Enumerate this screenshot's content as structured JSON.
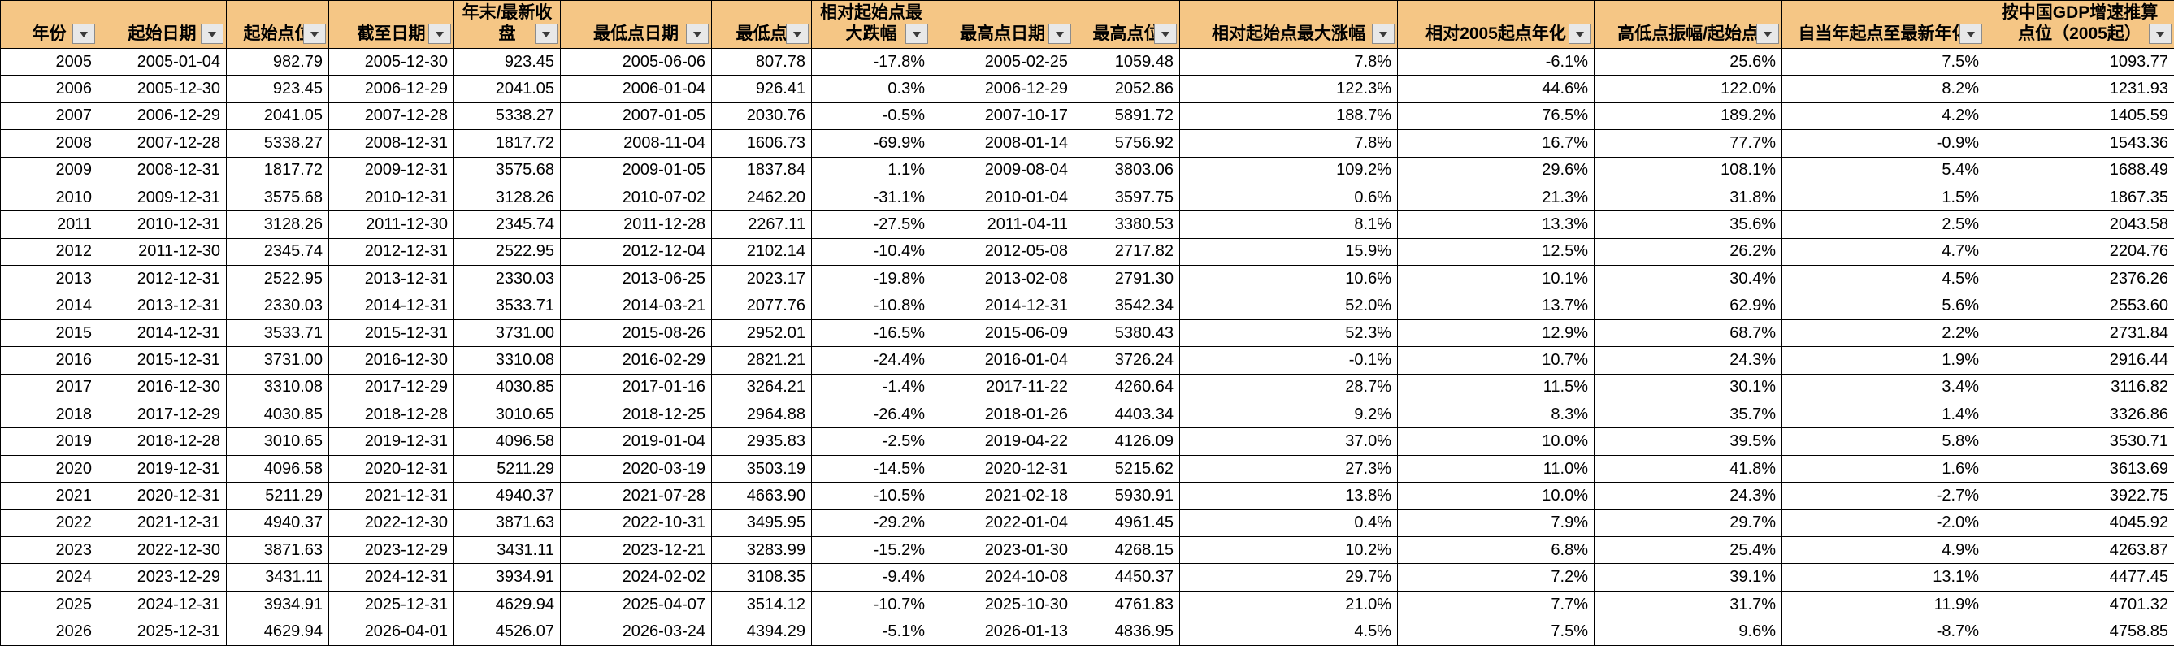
{
  "theme": {
    "header_bg": "#F5C685",
    "grid_color": "#000000",
    "cell_bg": "#FFFFFF",
    "text_color": "#000000",
    "filter_button_bg": "#E8E8E8",
    "filter_button_border": "#8C8C8C"
  },
  "table": {
    "columns": [
      {
        "id": "year",
        "label": "年份"
      },
      {
        "id": "start-date",
        "label": "起始日期"
      },
      {
        "id": "start-value",
        "label": "起始点位"
      },
      {
        "id": "end-date",
        "label": "截至日期"
      },
      {
        "id": "close-value",
        "label": "年末/最新收\n盘"
      },
      {
        "id": "low-date",
        "label": "最低点日期"
      },
      {
        "id": "low-value",
        "label": "最低点"
      },
      {
        "id": "max-drawdown",
        "label": "相对起始点最\n大跌幅"
      },
      {
        "id": "high-date",
        "label": "最高点日期"
      },
      {
        "id": "high-value",
        "label": "最高点位"
      },
      {
        "id": "max-gain",
        "label": "相对起始点最大涨幅"
      },
      {
        "id": "annualized-from-2005",
        "label": "相对2005起点年化"
      },
      {
        "id": "amplitude",
        "label": "高低点振幅/起始点"
      },
      {
        "id": "ytd-annualized",
        "label": "自当年起点至最新年化"
      },
      {
        "id": "gdp-projected-value",
        "label": "按中国GDP增速推算\n点位（2005起）"
      }
    ],
    "rows": [
      [
        "2005",
        "2005-01-04",
        "982.79",
        "2005-12-30",
        "923.45",
        "2005-06-06",
        "807.78",
        "-17.8%",
        "2005-02-25",
        "1059.48",
        "7.8%",
        "-6.1%",
        "25.6%",
        "7.5%",
        "1093.77"
      ],
      [
        "2006",
        "2005-12-30",
        "923.45",
        "2006-12-29",
        "2041.05",
        "2006-01-04",
        "926.41",
        "0.3%",
        "2006-12-29",
        "2052.86",
        "122.3%",
        "44.6%",
        "122.0%",
        "8.2%",
        "1231.93"
      ],
      [
        "2007",
        "2006-12-29",
        "2041.05",
        "2007-12-28",
        "5338.27",
        "2007-01-05",
        "2030.76",
        "-0.5%",
        "2007-10-17",
        "5891.72",
        "188.7%",
        "76.5%",
        "189.2%",
        "4.2%",
        "1405.59"
      ],
      [
        "2008",
        "2007-12-28",
        "5338.27",
        "2008-12-31",
        "1817.72",
        "2008-11-04",
        "1606.73",
        "-69.9%",
        "2008-01-14",
        "5756.92",
        "7.8%",
        "16.7%",
        "77.7%",
        "-0.9%",
        "1543.36"
      ],
      [
        "2009",
        "2008-12-31",
        "1817.72",
        "2009-12-31",
        "3575.68",
        "2009-01-05",
        "1837.84",
        "1.1%",
        "2009-08-04",
        "3803.06",
        "109.2%",
        "29.6%",
        "108.1%",
        "5.4%",
        "1688.49"
      ],
      [
        "2010",
        "2009-12-31",
        "3575.68",
        "2010-12-31",
        "3128.26",
        "2010-07-02",
        "2462.20",
        "-31.1%",
        "2010-01-04",
        "3597.75",
        "0.6%",
        "21.3%",
        "31.8%",
        "1.5%",
        "1867.35"
      ],
      [
        "2011",
        "2010-12-31",
        "3128.26",
        "2011-12-30",
        "2345.74",
        "2011-12-28",
        "2267.11",
        "-27.5%",
        "2011-04-11",
        "3380.53",
        "8.1%",
        "13.3%",
        "35.6%",
        "2.5%",
        "2043.58"
      ],
      [
        "2012",
        "2011-12-30",
        "2345.74",
        "2012-12-31",
        "2522.95",
        "2012-12-04",
        "2102.14",
        "-10.4%",
        "2012-05-08",
        "2717.82",
        "15.9%",
        "12.5%",
        "26.2%",
        "4.7%",
        "2204.76"
      ],
      [
        "2013",
        "2012-12-31",
        "2522.95",
        "2013-12-31",
        "2330.03",
        "2013-06-25",
        "2023.17",
        "-19.8%",
        "2013-02-08",
        "2791.30",
        "10.6%",
        "10.1%",
        "30.4%",
        "4.5%",
        "2376.26"
      ],
      [
        "2014",
        "2013-12-31",
        "2330.03",
        "2014-12-31",
        "3533.71",
        "2014-03-21",
        "2077.76",
        "-10.8%",
        "2014-12-31",
        "3542.34",
        "52.0%",
        "13.7%",
        "62.9%",
        "5.6%",
        "2553.60"
      ],
      [
        "2015",
        "2014-12-31",
        "3533.71",
        "2015-12-31",
        "3731.00",
        "2015-08-26",
        "2952.01",
        "-16.5%",
        "2015-06-09",
        "5380.43",
        "52.3%",
        "12.9%",
        "68.7%",
        "2.2%",
        "2731.84"
      ],
      [
        "2016",
        "2015-12-31",
        "3731.00",
        "2016-12-30",
        "3310.08",
        "2016-02-29",
        "2821.21",
        "-24.4%",
        "2016-01-04",
        "3726.24",
        "-0.1%",
        "10.7%",
        "24.3%",
        "1.9%",
        "2916.44"
      ],
      [
        "2017",
        "2016-12-30",
        "3310.08",
        "2017-12-29",
        "4030.85",
        "2017-01-16",
        "3264.21",
        "-1.4%",
        "2017-11-22",
        "4260.64",
        "28.7%",
        "11.5%",
        "30.1%",
        "3.4%",
        "3116.82"
      ],
      [
        "2018",
        "2017-12-29",
        "4030.85",
        "2018-12-28",
        "3010.65",
        "2018-12-25",
        "2964.88",
        "-26.4%",
        "2018-01-26",
        "4403.34",
        "9.2%",
        "8.3%",
        "35.7%",
        "1.4%",
        "3326.86"
      ],
      [
        "2019",
        "2018-12-28",
        "3010.65",
        "2019-12-31",
        "4096.58",
        "2019-01-04",
        "2935.83",
        "-2.5%",
        "2019-04-22",
        "4126.09",
        "37.0%",
        "10.0%",
        "39.5%",
        "5.8%",
        "3530.71"
      ],
      [
        "2020",
        "2019-12-31",
        "4096.58",
        "2020-12-31",
        "5211.29",
        "2020-03-19",
        "3503.19",
        "-14.5%",
        "2020-12-31",
        "5215.62",
        "27.3%",
        "11.0%",
        "41.8%",
        "1.6%",
        "3613.69"
      ],
      [
        "2021",
        "2020-12-31",
        "5211.29",
        "2021-12-31",
        "4940.37",
        "2021-07-28",
        "4663.90",
        "-10.5%",
        "2021-02-18",
        "5930.91",
        "13.8%",
        "10.0%",
        "24.3%",
        "-2.7%",
        "3922.75"
      ],
      [
        "2022",
        "2021-12-31",
        "4940.37",
        "2022-12-30",
        "3871.63",
        "2022-10-31",
        "3495.95",
        "-29.2%",
        "2022-01-04",
        "4961.45",
        "0.4%",
        "7.9%",
        "29.7%",
        "-2.0%",
        "4045.92"
      ],
      [
        "2023",
        "2022-12-30",
        "3871.63",
        "2023-12-29",
        "3431.11",
        "2023-12-21",
        "3283.99",
        "-15.2%",
        "2023-01-30",
        "4268.15",
        "10.2%",
        "6.8%",
        "25.4%",
        "4.9%",
        "4263.87"
      ],
      [
        "2024",
        "2023-12-29",
        "3431.11",
        "2024-12-31",
        "3934.91",
        "2024-02-02",
        "3108.35",
        "-9.4%",
        "2024-10-08",
        "4450.37",
        "29.7%",
        "7.2%",
        "39.1%",
        "13.1%",
        "4477.45"
      ],
      [
        "2025",
        "2024-12-31",
        "3934.91",
        "2025-12-31",
        "4629.94",
        "2025-04-07",
        "3514.12",
        "-10.7%",
        "2025-10-30",
        "4761.83",
        "21.0%",
        "7.7%",
        "31.7%",
        "11.9%",
        "4701.32"
      ],
      [
        "2026",
        "2025-12-31",
        "4629.94",
        "2026-04-01",
        "4526.07",
        "2026-03-24",
        "4394.29",
        "-5.1%",
        "2026-01-13",
        "4836.95",
        "4.5%",
        "7.5%",
        "9.6%",
        "-8.7%",
        "4758.85"
      ]
    ]
  }
}
